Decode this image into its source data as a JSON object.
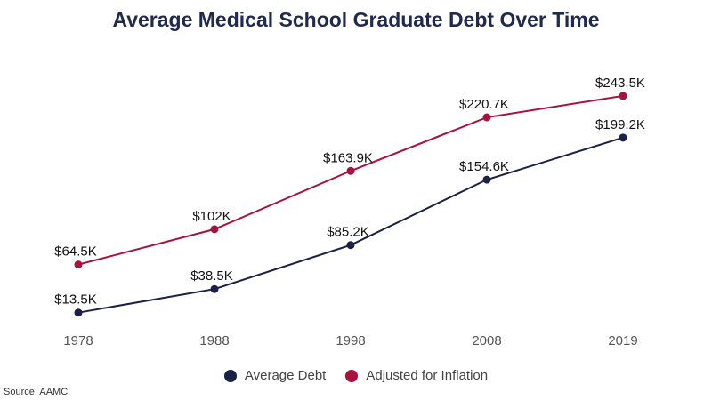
{
  "chart_data": {
    "type": "line",
    "title": "Average Medical School Graduate Debt Over Time",
    "categories": [
      "1978",
      "1988",
      "1998",
      "2008",
      "2019"
    ],
    "series": [
      {
        "name": "Average Debt",
        "color": "#1b2045",
        "values": [
          13.5,
          38.5,
          85.2,
          154.6,
          199.2
        ],
        "labels": [
          "$13.5K",
          "$38.5K",
          "$85.2K",
          "$154.6K",
          "$199.2K"
        ]
      },
      {
        "name": "Adjusted for Inflation",
        "color": "#a8123e",
        "values": [
          64.5,
          102,
          163.9,
          220.7,
          243.5
        ],
        "labels": [
          "$64.5K",
          "$102K",
          "$163.9K",
          "$220.7K",
          "$243.5K"
        ]
      }
    ],
    "ylim": [
      0,
      260
    ],
    "grid": false,
    "legend_position": "bottom-center",
    "source": "Source: AAMC"
  }
}
